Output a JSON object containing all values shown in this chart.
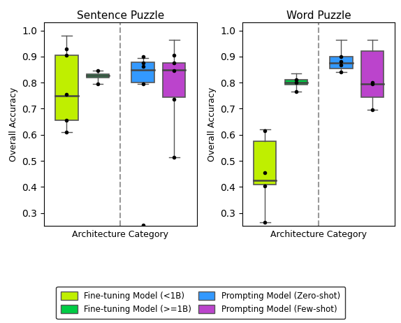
{
  "titles": [
    "Sentence Puzzle",
    "Word Puzzle"
  ],
  "ylabel": "Overall Accuracy",
  "xlabel": "Architecture Category",
  "ylim": [
    0.25,
    1.03
  ],
  "yticks": [
    0.3,
    0.4,
    0.5,
    0.6,
    0.7,
    0.8,
    0.9,
    1.0
  ],
  "colors": {
    "finetune_small": "#BFEF00",
    "finetune_large": "#00CC44",
    "prompt_zero": "#3399FF",
    "prompt_few": "#BB44CC"
  },
  "box_edgecolor": "#555555",
  "dashed_line_color": "#999999",
  "sentence_puzzle": {
    "finetune_small": {
      "whislo": 0.61,
      "q1": 0.655,
      "med": 0.75,
      "q3": 0.905,
      "whishi": 0.98,
      "fliers": [
        0.61,
        0.655,
        0.755,
        0.905,
        0.93
      ]
    },
    "finetune_large": {
      "whislo": 0.795,
      "q1": 0.82,
      "med": 0.828,
      "q3": 0.833,
      "whishi": 0.845,
      "fliers": [
        0.795,
        0.845
      ]
    },
    "prompt_zero": {
      "whislo": 0.795,
      "q1": 0.8,
      "med": 0.85,
      "q3": 0.878,
      "whishi": 0.895,
      "fliers": [
        0.255,
        0.795,
        0.862,
        0.875,
        0.9
      ]
    },
    "prompt_few": {
      "whislo": 0.515,
      "q1": 0.745,
      "med": 0.85,
      "q3": 0.875,
      "whishi": 0.965,
      "fliers": [
        0.515,
        0.735,
        0.845,
        0.875,
        0.905
      ]
    }
  },
  "word_puzzle": {
    "finetune_small": {
      "whislo": 0.265,
      "q1": 0.41,
      "med": 0.425,
      "q3": 0.575,
      "whishi": 0.62,
      "fliers": [
        0.265,
        0.405,
        0.455,
        0.615
      ]
    },
    "finetune_large": {
      "whislo": 0.765,
      "q1": 0.793,
      "med": 0.8,
      "q3": 0.812,
      "whishi": 0.835,
      "fliers": [
        0.765,
        0.8,
        0.81
      ]
    },
    "prompt_zero": {
      "whislo": 0.84,
      "q1": 0.855,
      "med": 0.875,
      "q3": 0.9,
      "whishi": 0.965,
      "fliers": [
        0.84,
        0.868,
        0.882,
        0.9
      ]
    },
    "prompt_few": {
      "whislo": 0.695,
      "q1": 0.745,
      "med": 0.795,
      "q3": 0.92,
      "whishi": 0.965,
      "fliers": [
        0.695,
        0.795,
        0.8
      ]
    }
  },
  "legend": [
    {
      "label": "Fine-tuning Model (<1B)",
      "color": "#BFEF00"
    },
    {
      "label": "Fine-tuning Model (>=1B)",
      "color": "#00CC44"
    },
    {
      "label": "Prompting Model (Zero-shot)",
      "color": "#3399FF"
    },
    {
      "label": "Prompting Model (Few-shot)",
      "color": "#BB44CC"
    }
  ]
}
